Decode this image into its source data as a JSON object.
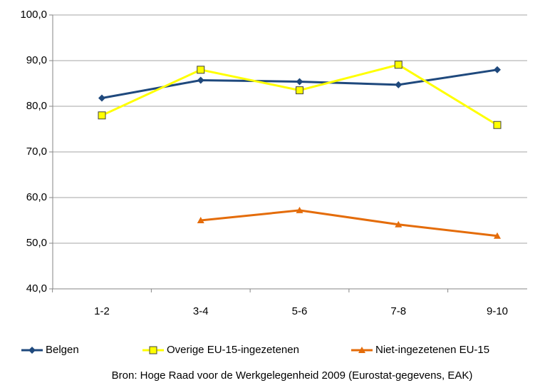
{
  "chart_data": {
    "type": "line",
    "categories": [
      "1-2",
      "3-4",
      "5-6",
      "7-8",
      "9-10"
    ],
    "series": [
      {
        "name": "Belgen",
        "color": "#1f497d",
        "marker": "diamond",
        "values": [
          81.8,
          85.7,
          85.4,
          84.7,
          88.0
        ]
      },
      {
        "name": "Overige EU-15-ingezetenen",
        "color": "#ffff00",
        "marker": "square",
        "values": [
          78.0,
          88.0,
          83.5,
          89.1,
          75.9
        ]
      },
      {
        "name": "Niet-ingezetenen EU-15",
        "color": "#e46c0a",
        "marker": "triangle",
        "values": [
          null,
          55.0,
          57.2,
          54.1,
          51.6
        ]
      }
    ],
    "ylim": [
      40,
      100
    ],
    "yticks": [
      {
        "value": 40,
        "label": "40,0"
      },
      {
        "value": 50,
        "label": "50,0"
      },
      {
        "value": 60,
        "label": "60,0"
      },
      {
        "value": 70,
        "label": "70,0"
      },
      {
        "value": 80,
        "label": "80,0"
      },
      {
        "value": 90,
        "label": "90,0"
      },
      {
        "value": 100,
        "label": "100,0"
      }
    ],
    "grid": true,
    "legend": "bottom",
    "source": "Bron: Hoge Raad voor de Werkgelegenheid 2009 (Eurostat-gegevens, EAK)"
  }
}
